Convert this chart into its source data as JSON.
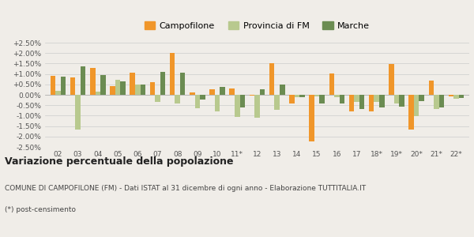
{
  "years": [
    "02",
    "03",
    "04",
    "05",
    "06",
    "07",
    "08",
    "09",
    "10",
    "11*",
    "12",
    "13",
    "14",
    "15",
    "16",
    "17",
    "18*",
    "19*",
    "20*",
    "21*",
    "22*"
  ],
  "campofilone": [
    0.9,
    0.83,
    1.3,
    0.42,
    1.05,
    0.6,
    2.0,
    0.12,
    0.25,
    0.3,
    -0.05,
    1.52,
    -0.42,
    -2.22,
    1.02,
    -0.8,
    -0.8,
    1.47,
    -1.65,
    0.7,
    -0.07
  ],
  "provincia_fm": [
    0.2,
    -1.65,
    0.15,
    0.72,
    0.5,
    -0.35,
    -0.42,
    -0.65,
    -0.78,
    -1.05,
    -1.1,
    -0.72,
    -0.1,
    -0.08,
    -0.1,
    -0.35,
    -0.35,
    -0.42,
    -1.02,
    -0.68,
    -0.18
  ],
  "marche": [
    0.88,
    1.37,
    0.95,
    0.65,
    0.5,
    1.1,
    1.06,
    -0.22,
    0.38,
    -0.6,
    0.27,
    0.5,
    -0.1,
    -0.42,
    -0.42,
    -0.68,
    -0.6,
    -0.55,
    -0.3,
    -0.6,
    -0.15
  ],
  "color_campofilone": "#f0962a",
  "color_provincia": "#b8c98e",
  "color_marche": "#6b8c52",
  "background": "#f0ede8",
  "ylim": [
    -2.5,
    2.5
  ],
  "yticks": [
    -2.5,
    -2.0,
    -1.5,
    -1.0,
    -0.5,
    0.0,
    0.5,
    1.0,
    1.5,
    2.0,
    2.5
  ],
  "title": "Variazione percentuale della popolazione",
  "subtitle": "COMUNE DI CAMPOFILONE (FM) - Dati ISTAT al 31 dicembre di ogni anno - Elaborazione TUTTITALIA.IT",
  "footnote": "(*) post-censimento",
  "legend_campofilone": "Campofilone",
  "legend_provincia": "Provincia di FM",
  "legend_marche": "Marche"
}
